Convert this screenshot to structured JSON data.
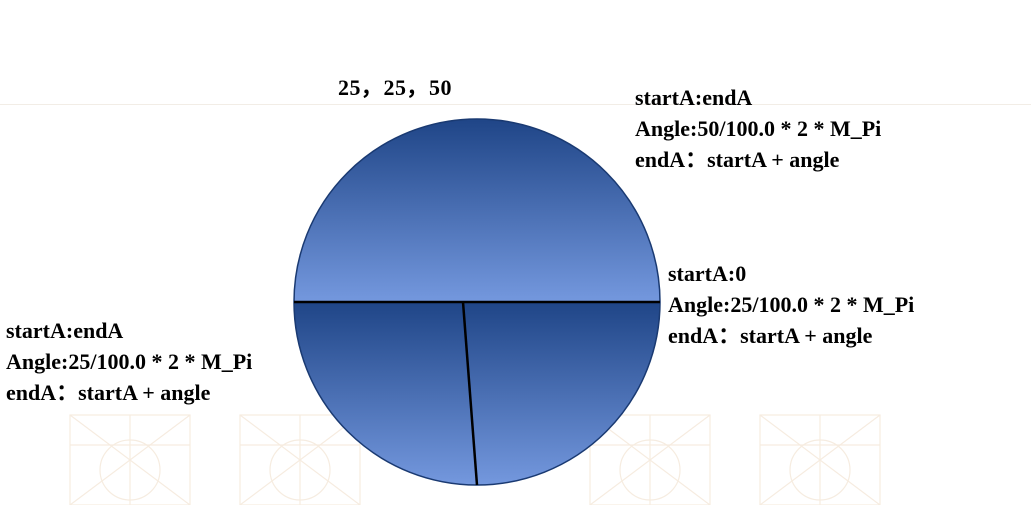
{
  "title": "25，25，50",
  "chart_data": {
    "type": "pie",
    "values": [
      25,
      25,
      50
    ],
    "total": 100.0,
    "colors": {
      "fill_top": "#1f4587",
      "fill_bottom": "#7498de",
      "edge": "#1a3a72",
      "divider": "#000000"
    }
  },
  "annotations": {
    "top": {
      "line1": "startA:endA",
      "line2": "Angle:50/100.0 * 2 * M_Pi",
      "line3": "endA：startA + angle"
    },
    "right": {
      "line1": "startA:0",
      "line2": "Angle:25/100.0 * 2 * M_Pi",
      "line3": "endA：startA + angle"
    },
    "left": {
      "line1": "startA:endA",
      "line2": "Angle:25/100.0 * 2 * M_Pi",
      "line3": "endA：startA + angle"
    }
  }
}
